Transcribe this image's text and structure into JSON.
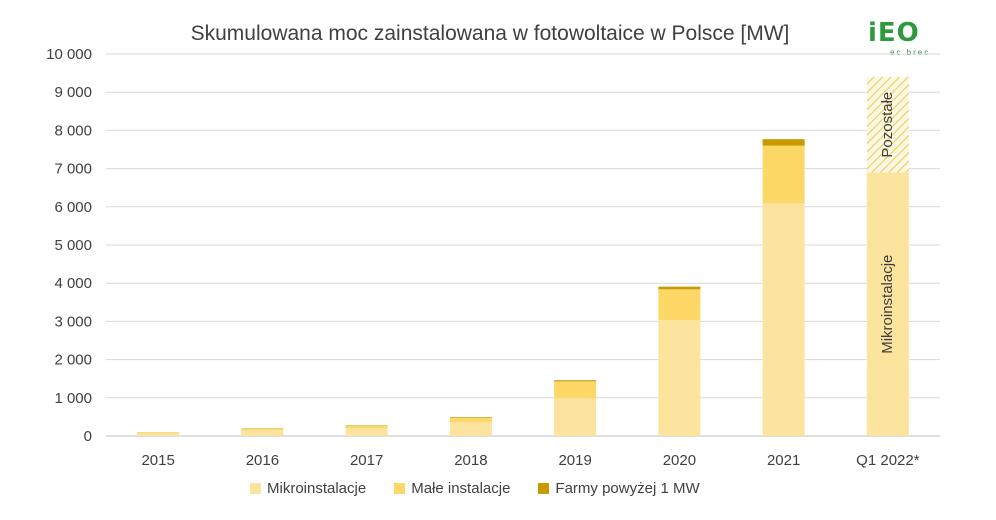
{
  "chart_data": {
    "type": "bar",
    "stacked": true,
    "title": "Skumulowana moc zainstalowana w fotowoltaice w Polsce [MW]",
    "categories": [
      "2015",
      "2016",
      "2017",
      "2018",
      "2019",
      "2020",
      "2021",
      "Q1 2022*"
    ],
    "series": [
      {
        "name": "Mikroinstalacje",
        "color": "#FCE39E",
        "values": [
          70,
          150,
          200,
          360,
          990,
          3030,
          6100,
          6900
        ]
      },
      {
        "name": "Małe instalacje",
        "color": "#FDD866",
        "values": [
          20,
          40,
          60,
          110,
          440,
          810,
          1500,
          null
        ]
      },
      {
        "name": "Farmy powyżej 1 MW",
        "color": "#C89A00",
        "values": [
          5,
          10,
          15,
          20,
          30,
          70,
          170,
          null
        ]
      }
    ],
    "annotations": [
      {
        "category": "Q1 2022*",
        "label": "Pozostałe",
        "value": 2500,
        "pattern": "hatched"
      },
      {
        "category": "Q1 2022*",
        "label": "Mikroinstalacje",
        "series": "Mikroinstalacje"
      }
    ],
    "ylim": [
      0,
      10000
    ],
    "yticks": [
      "0",
      "1 000",
      "2 000",
      "3 000",
      "4 000",
      "5 000",
      "6 000",
      "7 000",
      "8 000",
      "9 000",
      "10 000"
    ],
    "grid": true,
    "legend_position": "bottom"
  },
  "logo": {
    "main": "iEO",
    "sub": "ec brec"
  }
}
